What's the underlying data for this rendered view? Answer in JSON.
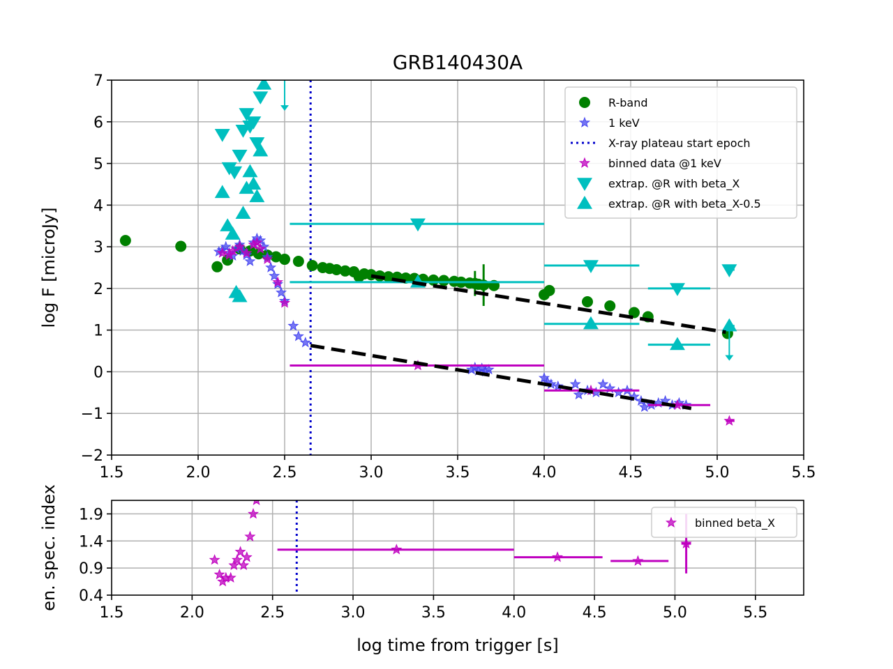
{
  "chart_data": [
    {
      "type": "scatter",
      "title": "GRB140430A",
      "xlabel": "",
      "ylabel": "log F [microJy]",
      "xlim": [
        1.5,
        5.5
      ],
      "ylim": [
        -2,
        7
      ],
      "xticks": [
        "1.5",
        "2.0",
        "2.5",
        "3.0",
        "3.5",
        "4.0",
        "4.5",
        "5.0",
        "5.5"
      ],
      "yticks": [
        "−2",
        "−1",
        "0",
        "1",
        "2",
        "3",
        "4",
        "5",
        "6",
        "7"
      ],
      "grid": true,
      "legend_position": "top-right",
      "legend": [
        {
          "label": "R-band",
          "marker": "circle",
          "color": "#008000"
        },
        {
          "label": "1 keV",
          "marker": "star",
          "color": "#4848f0"
        },
        {
          "label": "X-ray plateau start epoch",
          "marker": "dotted-line",
          "color": "#0000cc"
        },
        {
          "label": "binned data @1 keV",
          "marker": "star",
          "color": "#bf00bf"
        },
        {
          "label": "extrap. @R with beta_X",
          "marker": "triangle-down",
          "color": "#00bfbf"
        },
        {
          "label": "extrap. @R with beta_X-0.5",
          "marker": "triangle-up",
          "color": "#00bfbf"
        }
      ],
      "plateau_start": 2.65,
      "series": [
        {
          "name": "R-band",
          "color": "#008000",
          "points": [
            [
              1.58,
              3.15
            ],
            [
              1.9,
              3.01
            ],
            [
              2.11,
              2.52
            ],
            [
              2.17,
              2.68
            ],
            [
              2.24,
              2.95
            ],
            [
              2.3,
              2.9
            ],
            [
              2.35,
              2.83
            ],
            [
              2.4,
              2.8
            ],
            [
              2.45,
              2.76
            ],
            [
              2.5,
              2.7
            ],
            [
              2.58,
              2.65
            ],
            [
              2.66,
              2.55
            ],
            [
              2.72,
              2.5
            ],
            [
              2.76,
              2.48
            ],
            [
              2.8,
              2.45
            ],
            [
              2.85,
              2.42
            ],
            [
              2.9,
              2.4
            ],
            [
              2.93,
              2.28
            ],
            [
              2.96,
              2.35
            ],
            [
              3.0,
              2.33
            ],
            [
              3.05,
              2.3
            ],
            [
              3.1,
              2.28
            ],
            [
              3.15,
              2.27
            ],
            [
              3.2,
              2.25
            ],
            [
              3.25,
              2.24
            ],
            [
              3.3,
              2.22
            ],
            [
              3.36,
              2.2
            ],
            [
              3.42,
              2.19
            ],
            [
              3.48,
              2.17
            ],
            [
              3.52,
              2.15
            ],
            [
              3.57,
              2.13
            ],
            [
              3.6,
              2.12
            ],
            [
              3.62,
              2.1
            ],
            [
              3.65,
              2.08
            ],
            [
              3.71,
              2.07
            ],
            [
              4.0,
              1.85
            ],
            [
              4.03,
              1.95
            ],
            [
              4.25,
              1.68
            ],
            [
              4.38,
              1.58
            ],
            [
              4.52,
              1.42
            ],
            [
              4.6,
              1.32
            ],
            [
              5.06,
              0.92
            ]
          ],
          "yerr": [
            [
              3.6,
              0.3
            ],
            [
              3.65,
              0.5
            ]
          ]
        },
        {
          "name": "1 keV",
          "color": "#4848f0",
          "points": [
            [
              2.12,
              2.88
            ],
            [
              2.14,
              2.92
            ],
            [
              2.16,
              3.0
            ],
            [
              2.18,
              2.85
            ],
            [
              2.2,
              2.78
            ],
            [
              2.22,
              2.95
            ],
            [
              2.24,
              3.05
            ],
            [
              2.26,
              2.9
            ],
            [
              2.28,
              2.8
            ],
            [
              2.3,
              2.65
            ],
            [
              2.32,
              3.1
            ],
            [
              2.34,
              3.2
            ],
            [
              2.36,
              3.15
            ],
            [
              2.38,
              3.0
            ],
            [
              2.4,
              2.75
            ],
            [
              2.42,
              2.5
            ],
            [
              2.44,
              2.3
            ],
            [
              2.46,
              2.1
            ],
            [
              2.48,
              1.9
            ],
            [
              2.5,
              1.7
            ],
            [
              2.55,
              1.1
            ],
            [
              2.58,
              0.85
            ],
            [
              2.62,
              0.7
            ],
            [
              3.58,
              0.05
            ],
            [
              3.6,
              0.1
            ],
            [
              3.62,
              0.02
            ],
            [
              3.64,
              0.08
            ],
            [
              3.66,
              0.0
            ],
            [
              3.68,
              0.05
            ],
            [
              4.0,
              -0.15
            ],
            [
              4.02,
              -0.25
            ],
            [
              4.04,
              -0.3
            ],
            [
              4.08,
              -0.35
            ],
            [
              4.18,
              -0.3
            ],
            [
              4.2,
              -0.55
            ],
            [
              4.25,
              -0.45
            ],
            [
              4.3,
              -0.5
            ],
            [
              4.34,
              -0.3
            ],
            [
              4.38,
              -0.4
            ],
            [
              4.43,
              -0.5
            ],
            [
              4.48,
              -0.45
            ],
            [
              4.52,
              -0.6
            ],
            [
              4.56,
              -0.7
            ],
            [
              4.58,
              -0.85
            ],
            [
              4.62,
              -0.8
            ],
            [
              4.66,
              -0.75
            ],
            [
              4.7,
              -0.7
            ],
            [
              4.74,
              -0.8
            ],
            [
              4.78,
              -0.75
            ],
            [
              4.82,
              -0.8
            ]
          ]
        },
        {
          "name": "binned data @1 keV",
          "color": "#bf00bf",
          "points": [
            [
              2.14,
              2.85
            ],
            [
              2.18,
              2.8
            ],
            [
              2.2,
              2.9
            ],
            [
              2.24,
              3.0
            ],
            [
              2.28,
              2.85
            ],
            [
              2.32,
              3.05
            ],
            [
              2.34,
              3.1
            ],
            [
              2.36,
              2.95
            ],
            [
              2.4,
              2.7
            ],
            [
              2.46,
              2.15
            ],
            [
              2.5,
              1.65
            ],
            [
              3.27,
              0.15
            ],
            [
              4.27,
              -0.45
            ],
            [
              4.77,
              -0.8
            ],
            [
              5.07,
              -1.18
            ]
          ],
          "xerr": [
            [
              3.27,
              2.53,
              4.0
            ],
            [
              4.27,
              4.0,
              4.55
            ],
            [
              4.77,
              4.6,
              4.96
            ],
            [
              5.07,
              5.05,
              5.1
            ]
          ]
        },
        {
          "name": "extrap. @R with beta_X",
          "color": "#00bfbf",
          "points": [
            [
              2.14,
              5.7
            ],
            [
              2.18,
              4.9
            ],
            [
              2.21,
              4.8
            ],
            [
              2.24,
              5.2
            ],
            [
              2.26,
              5.8
            ],
            [
              2.28,
              6.2
            ],
            [
              2.3,
              5.9
            ],
            [
              2.32,
              6.0
            ],
            [
              2.34,
              5.5
            ],
            [
              2.36,
              6.6
            ],
            [
              3.27,
              3.55
            ],
            [
              4.27,
              2.55
            ],
            [
              4.77,
              2.0
            ],
            [
              5.07,
              2.45
            ]
          ],
          "xerr": [
            [
              3.27,
              2.53,
              4.0
            ],
            [
              4.27,
              4.0,
              4.55
            ],
            [
              4.77,
              4.6,
              4.96
            ],
            [
              5.07,
              5.05,
              5.1
            ]
          ],
          "upper_limits": [
            [
              2.5,
              7.0
            ],
            [
              5.07,
              1.0
            ]
          ]
        },
        {
          "name": "extrap. @R with beta_X-0.5",
          "color": "#00bfbf",
          "points": [
            [
              2.14,
              4.3
            ],
            [
              2.17,
              3.5
            ],
            [
              2.2,
              3.3
            ],
            [
              2.22,
              1.9
            ],
            [
              2.24,
              1.8
            ],
            [
              2.26,
              3.8
            ],
            [
              2.28,
              4.4
            ],
            [
              2.3,
              4.8
            ],
            [
              2.32,
              4.5
            ],
            [
              2.34,
              4.2
            ],
            [
              2.36,
              5.3
            ],
            [
              2.38,
              6.9
            ],
            [
              3.27,
              2.15
            ],
            [
              4.27,
              1.15
            ],
            [
              4.77,
              0.65
            ],
            [
              5.07,
              1.1
            ]
          ],
          "xerr": [
            [
              3.27,
              2.53,
              4.0
            ],
            [
              4.27,
              4.0,
              4.55
            ],
            [
              4.77,
              4.6,
              4.96
            ],
            [
              5.07,
              5.05,
              5.1
            ]
          ]
        }
      ],
      "fits": [
        {
          "name": "fit-optical",
          "color": "#000000",
          "x": [
            3.0,
            5.05
          ],
          "y": [
            2.3,
            0.95
          ]
        },
        {
          "name": "fit-xray",
          "color": "#000000",
          "x": [
            2.65,
            4.85
          ],
          "y": [
            0.63,
            -0.88
          ]
        }
      ]
    },
    {
      "type": "scatter",
      "title": "",
      "xlabel": "log time from trigger [s]",
      "ylabel": "en. spec. index",
      "xlim": [
        1.5,
        5.8
      ],
      "ylim": [
        0.4,
        2.15
      ],
      "xticks": [
        "1.5",
        "2.0",
        "2.5",
        "3.0",
        "3.5",
        "4.0",
        "4.5",
        "5.0",
        "5.5"
      ],
      "yticks": [
        "0.4",
        "0.9",
        "1.4",
        "1.9"
      ],
      "grid": true,
      "legend_position": "top-right",
      "legend": [
        {
          "label": "binned beta_X",
          "marker": "star",
          "color": "#bf00bf"
        }
      ],
      "plateau_start": 2.65,
      "series": [
        {
          "name": "binned beta_X",
          "color": "#bf00bf",
          "points": [
            [
              2.14,
              1.05
            ],
            [
              2.17,
              0.78
            ],
            [
              2.19,
              0.65
            ],
            [
              2.21,
              0.72
            ],
            [
              2.24,
              0.72
            ],
            [
              2.26,
              0.95
            ],
            [
              2.28,
              1.05
            ],
            [
              2.3,
              1.2
            ],
            [
              2.32,
              0.95
            ],
            [
              2.34,
              1.1
            ],
            [
              2.36,
              1.48
            ],
            [
              2.38,
              1.9
            ],
            [
              2.4,
              2.15
            ],
            [
              3.27,
              1.24
            ],
            [
              4.27,
              1.1
            ],
            [
              4.77,
              1.03
            ],
            [
              5.07,
              1.35
            ]
          ],
          "xerr": [
            [
              3.27,
              2.53,
              4.0
            ],
            [
              4.27,
              4.0,
              4.55
            ],
            [
              4.77,
              4.6,
              4.96
            ],
            [
              5.07,
              5.04,
              5.1
            ]
          ],
          "yerr": [
            [
              5.07,
              0.55
            ]
          ]
        }
      ]
    }
  ]
}
